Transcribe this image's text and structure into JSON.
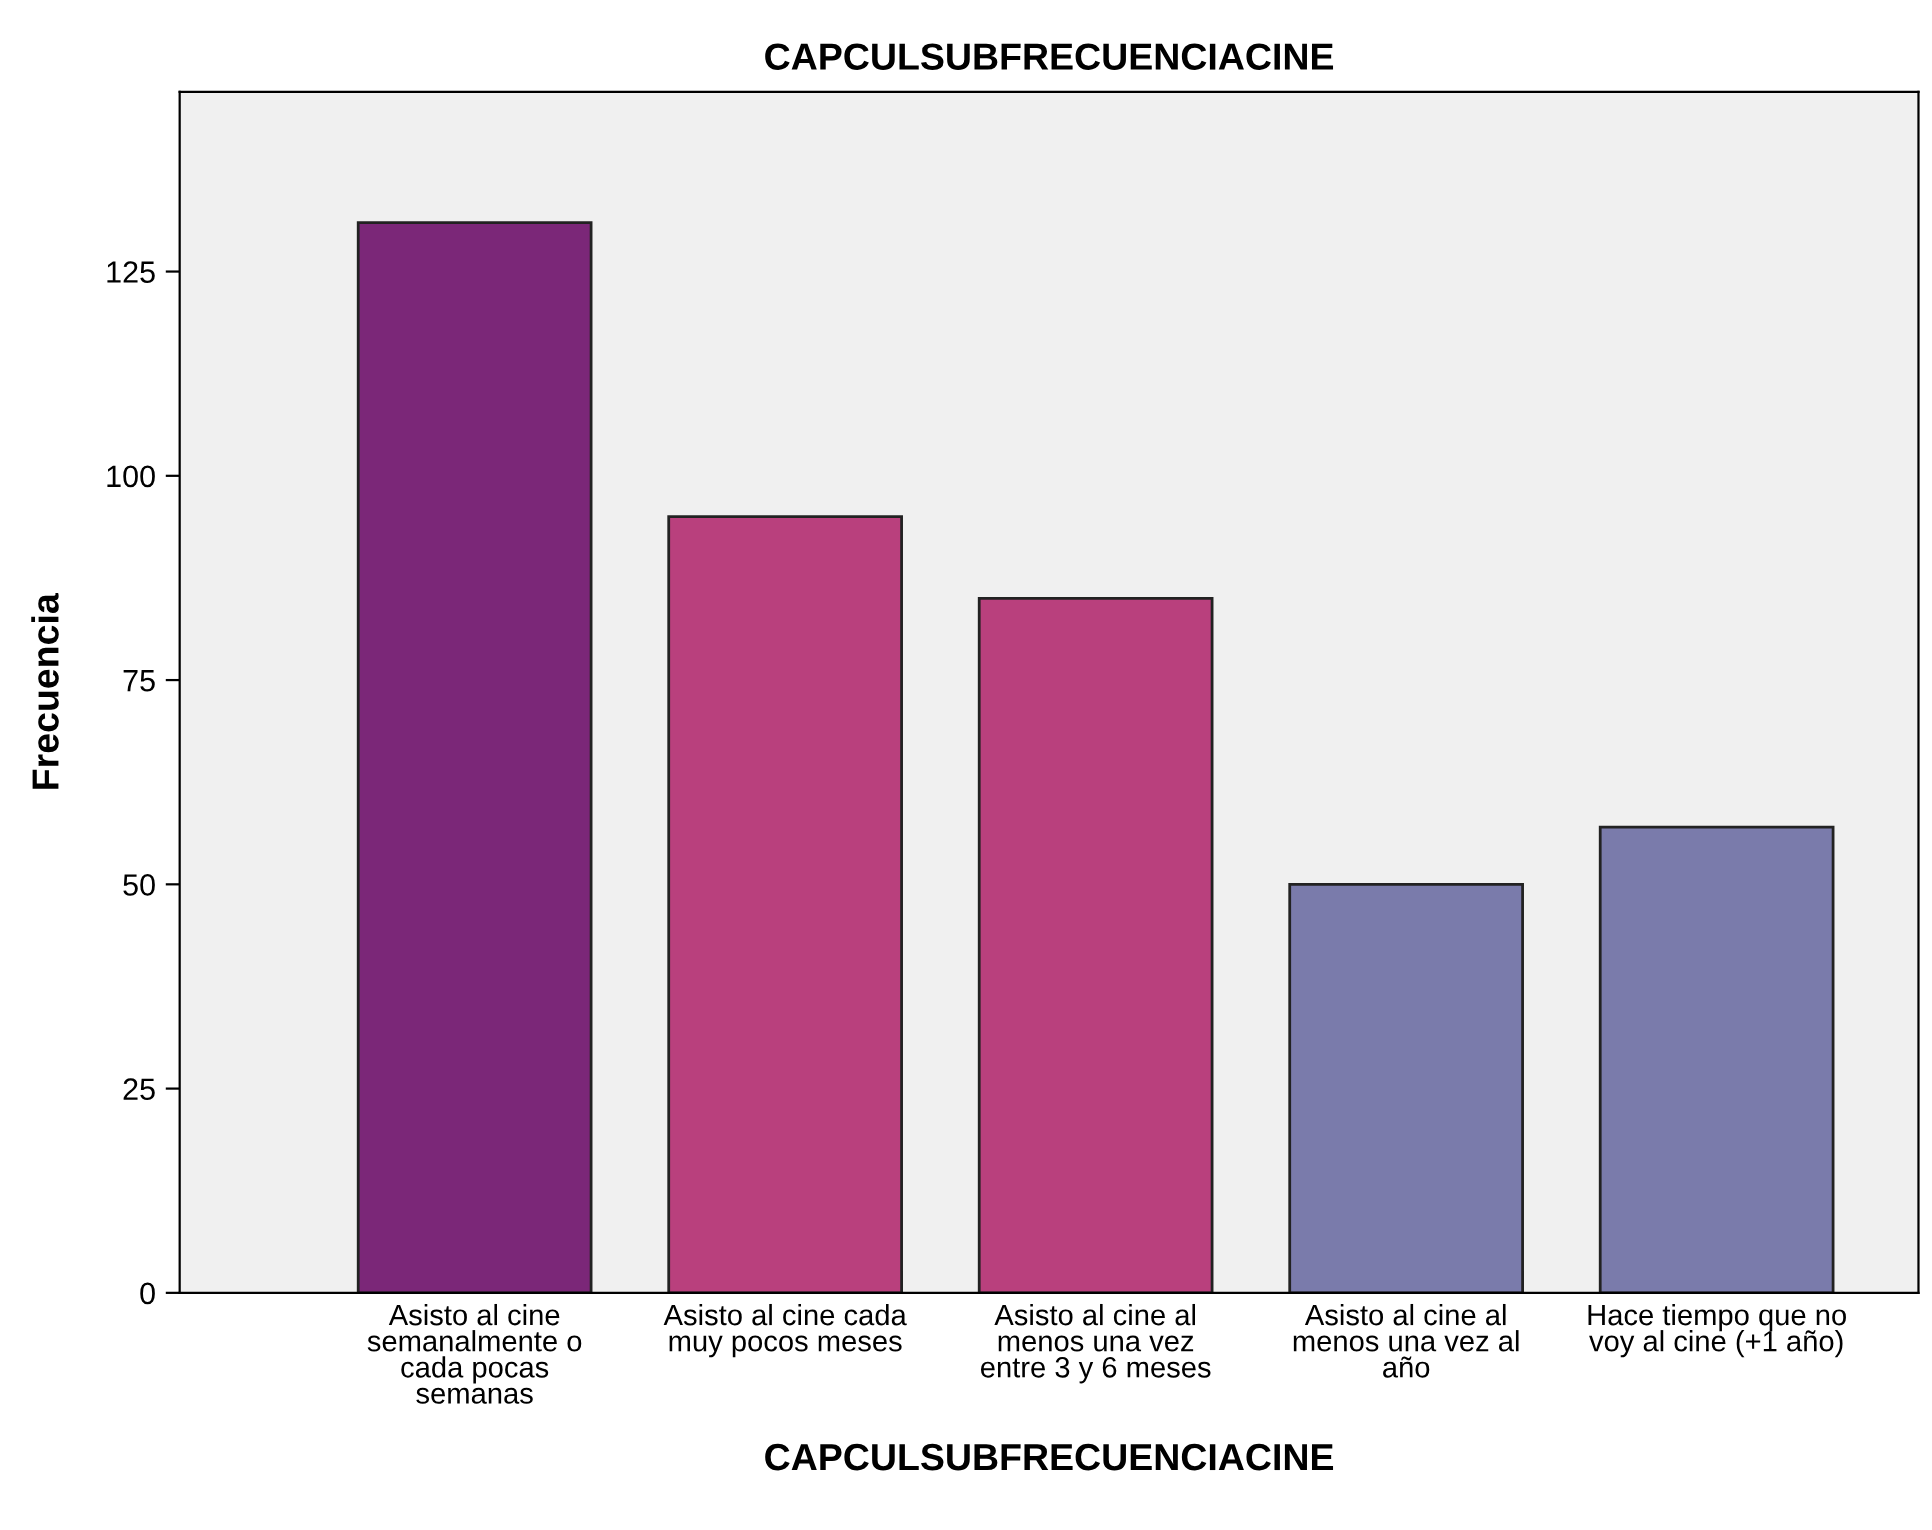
{
  "chart_data": {
    "type": "bar",
    "title": "CAPCULSUBFRECUENCIACINE",
    "xlabel": "CAPCULSUBFRECUENCIACINE",
    "ylabel": "Frecuencia",
    "categories": [
      "Asisto al cine\nsemanalmente o\ncada pocas\nsemanas",
      "Asisto al cine cada\nmuy pocos meses",
      "Asisto al cine al\nmenos una vez\nentre 3 y 6 meses",
      "Asisto al cine al\nmenos una vez al\naño",
      "Hace tiempo que no\nvoy al cine (+1 año)"
    ],
    "values": [
      131,
      95,
      85,
      50,
      57
    ],
    "colors": [
      "#7b2778",
      "#b9407d",
      "#b9407d",
      "#7a7bab",
      "#7a7bab"
    ],
    "ylim": [
      0,
      147
    ],
    "yticks": [
      0,
      25,
      50,
      75,
      100,
      125
    ],
    "grid": false,
    "legend": false
  }
}
